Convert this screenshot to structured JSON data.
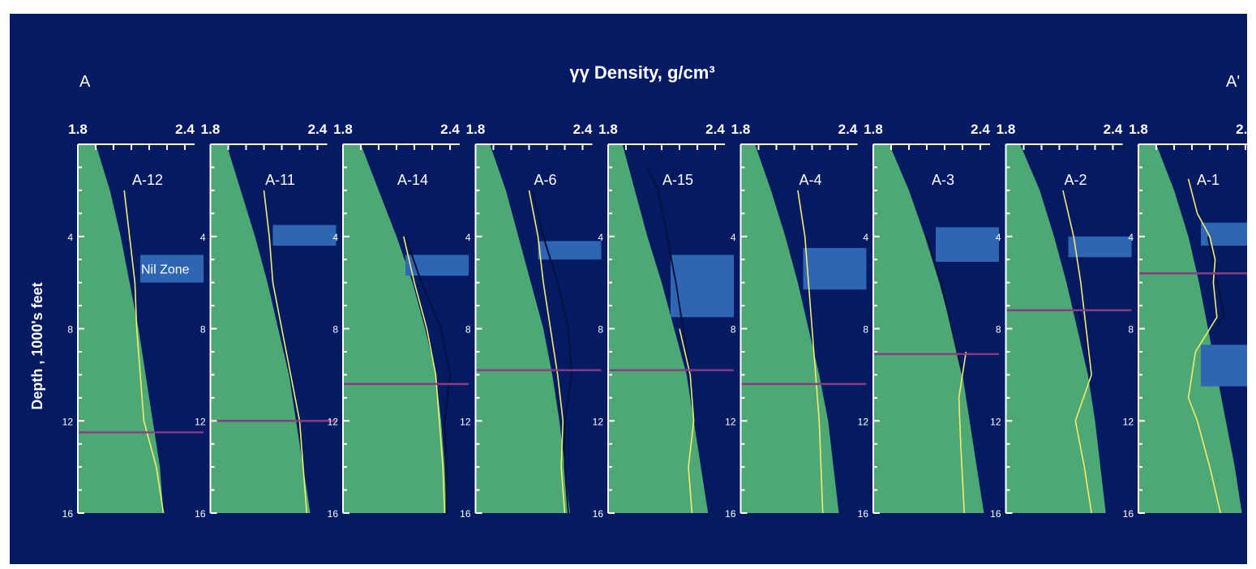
{
  "labels": {
    "left_section": "A",
    "right_section": "A'",
    "title": "γγ  Density, g/cm³",
    "ylabel": "Depth , 1000's feet",
    "nil_zone": "Nil Zone"
  },
  "colors": {
    "background": "#041b64",
    "fill": "#4ea873",
    "yellow_line": "#f2ec6e",
    "black_line": "#06113a",
    "purple_line": "#8a3b86",
    "blue_band": "#2e66b4"
  },
  "chart_data": {
    "type": "line",
    "title": "γγ  Density, g/cm³",
    "ylabel": "Depth , 1000's feet",
    "xlim": [
      1.8,
      2.4
    ],
    "ylim": [
      0,
      16
    ],
    "x_tick_labels": [
      "1.8",
      "2.4"
    ],
    "y_ticks": [
      4,
      8,
      12,
      16
    ],
    "wells": [
      {
        "name": "A-12",
        "fill": [
          [
            1.9,
            0
          ],
          [
            1.98,
            2
          ],
          [
            2.04,
            4
          ],
          [
            2.09,
            6
          ],
          [
            2.14,
            8
          ],
          [
            2.18,
            10
          ],
          [
            2.22,
            12
          ],
          [
            2.26,
            14
          ],
          [
            2.28,
            16
          ]
        ],
        "yellow": [
          [
            2.06,
            2
          ],
          [
            2.09,
            4
          ],
          [
            2.12,
            6
          ],
          [
            2.13,
            8
          ],
          [
            2.15,
            10
          ],
          [
            2.17,
            12
          ],
          [
            2.24,
            14
          ],
          [
            2.28,
            16
          ]
        ],
        "black": null,
        "nil_zone": [
          4.8,
          6.0
        ],
        "overpressure_depth": 12.5
      },
      {
        "name": "A-11",
        "fill": [
          [
            1.89,
            0
          ],
          [
            1.97,
            2
          ],
          [
            2.05,
            4
          ],
          [
            2.12,
            6
          ],
          [
            2.18,
            8
          ],
          [
            2.24,
            10
          ],
          [
            2.28,
            12
          ],
          [
            2.32,
            14
          ],
          [
            2.36,
            16
          ]
        ],
        "yellow": [
          [
            2.1,
            2
          ],
          [
            2.13,
            4
          ],
          [
            2.15,
            6
          ],
          [
            2.2,
            8
          ],
          [
            2.25,
            10
          ],
          [
            2.3,
            12
          ],
          [
            2.32,
            14
          ],
          [
            2.34,
            16
          ]
        ],
        "black": null,
        "nil_zone": [
          3.5,
          4.4
        ],
        "overpressure_depth": 12.0
      },
      {
        "name": "A-14",
        "fill": [
          [
            1.9,
            0
          ],
          [
            2.0,
            2
          ],
          [
            2.1,
            4
          ],
          [
            2.19,
            6
          ],
          [
            2.26,
            8
          ],
          [
            2.32,
            10
          ],
          [
            2.35,
            12
          ],
          [
            2.37,
            14
          ],
          [
            2.38,
            16
          ]
        ],
        "yellow": [
          [
            2.14,
            4
          ],
          [
            2.2,
            6
          ],
          [
            2.27,
            8
          ],
          [
            2.32,
            10
          ],
          [
            2.34,
            12
          ],
          [
            2.36,
            14
          ],
          [
            2.37,
            16
          ]
        ],
        "black": [
          [
            2.15,
            4
          ],
          [
            2.24,
            6
          ],
          [
            2.35,
            8
          ],
          [
            2.4,
            10
          ],
          [
            2.37,
            12
          ],
          [
            2.38,
            14
          ],
          [
            2.38,
            16
          ]
        ],
        "nil_zone": [
          4.8,
          5.7
        ],
        "overpressure_depth": 10.4
      },
      {
        "name": "A-6",
        "fill": [
          [
            1.88,
            0
          ],
          [
            1.97,
            2
          ],
          [
            2.04,
            4
          ],
          [
            2.11,
            6
          ],
          [
            2.18,
            8
          ],
          [
            2.23,
            10
          ],
          [
            2.27,
            12
          ],
          [
            2.3,
            14
          ],
          [
            2.33,
            16
          ]
        ],
        "yellow": [
          [
            2.1,
            2
          ],
          [
            2.15,
            4
          ],
          [
            2.18,
            6
          ],
          [
            2.22,
            8
          ],
          [
            2.26,
            10
          ],
          [
            2.29,
            12
          ],
          [
            2.28,
            14
          ],
          [
            2.3,
            16
          ]
        ],
        "black": [
          [
            2.12,
            2
          ],
          [
            2.18,
            4
          ],
          [
            2.26,
            6
          ],
          [
            2.32,
            8
          ],
          [
            2.34,
            10
          ],
          [
            2.3,
            12
          ],
          [
            2.3,
            14
          ],
          [
            2.32,
            16
          ]
        ],
        "nil_zone": [
          4.2,
          5.0
        ],
        "overpressure_depth": 9.8
      },
      {
        "name": "A-15",
        "fill": [
          [
            1.88,
            0
          ],
          [
            1.95,
            2
          ],
          [
            2.02,
            4
          ],
          [
            2.1,
            6
          ],
          [
            2.17,
            8
          ],
          [
            2.24,
            10
          ],
          [
            2.28,
            12
          ],
          [
            2.32,
            14
          ],
          [
            2.36,
            16
          ]
        ],
        "yellow": [
          [
            2.2,
            8
          ],
          [
            2.26,
            10
          ],
          [
            2.28,
            12
          ],
          [
            2.25,
            14
          ],
          [
            2.27,
            16
          ]
        ],
        "black": [
          [
            2.02,
            1
          ],
          [
            2.08,
            2
          ],
          [
            2.13,
            4
          ],
          [
            2.18,
            6
          ],
          [
            2.22,
            8
          ],
          [
            2.26,
            10
          ]
        ],
        "nil_zone": [
          4.8,
          7.5
        ],
        "overpressure_depth": 9.8
      },
      {
        "name": "A-4",
        "fill": [
          [
            1.88,
            0
          ],
          [
            1.97,
            2
          ],
          [
            2.05,
            4
          ],
          [
            2.12,
            6
          ],
          [
            2.18,
            8
          ],
          [
            2.24,
            10
          ],
          [
            2.29,
            12
          ],
          [
            2.32,
            14
          ],
          [
            2.35,
            16
          ]
        ],
        "yellow": [
          [
            2.12,
            2
          ],
          [
            2.16,
            4
          ],
          [
            2.18,
            6
          ],
          [
            2.2,
            8
          ],
          [
            2.22,
            10
          ],
          [
            2.24,
            12
          ],
          [
            2.25,
            14
          ],
          [
            2.26,
            16
          ]
        ],
        "black": null,
        "nil_zone": [
          4.5,
          6.3
        ],
        "overpressure_depth": 10.4
      },
      {
        "name": "A-3",
        "fill": [
          [
            1.89,
            0
          ],
          [
            2.0,
            2
          ],
          [
            2.09,
            4
          ],
          [
            2.17,
            6
          ],
          [
            2.24,
            8
          ],
          [
            2.3,
            10
          ],
          [
            2.34,
            12
          ],
          [
            2.38,
            14
          ],
          [
            2.42,
            16
          ]
        ],
        "yellow": [
          [
            2.32,
            9
          ],
          [
            2.28,
            11
          ],
          [
            2.29,
            13
          ],
          [
            2.31,
            16
          ]
        ],
        "black": [
          [
            2.1,
            4
          ],
          [
            2.18,
            6
          ],
          [
            2.24,
            8
          ],
          [
            2.3,
            10
          ]
        ],
        "nil_zone": [
          3.6,
          5.1
        ],
        "overpressure_depth": 9.1
      },
      {
        "name": "A-2",
        "fill": [
          [
            1.88,
            0
          ],
          [
            1.99,
            2
          ],
          [
            2.07,
            4
          ],
          [
            2.14,
            6
          ],
          [
            2.2,
            8
          ],
          [
            2.26,
            10
          ],
          [
            2.3,
            12
          ],
          [
            2.33,
            14
          ],
          [
            2.36,
            16
          ]
        ],
        "yellow": [
          [
            2.12,
            2
          ],
          [
            2.18,
            4
          ],
          [
            2.22,
            6
          ],
          [
            2.25,
            8
          ],
          [
            2.28,
            10
          ],
          [
            2.19,
            12
          ],
          [
            2.24,
            14
          ],
          [
            2.28,
            16
          ]
        ],
        "black": [
          [
            2.2,
            7
          ],
          [
            2.24,
            8
          ],
          [
            2.28,
            10
          ]
        ],
        "nil_zone": [
          4.0,
          4.9
        ],
        "overpressure_depth": 7.2
      },
      {
        "name": "A-1",
        "fill": [
          [
            1.9,
            0
          ],
          [
            2.0,
            2
          ],
          [
            2.08,
            4
          ],
          [
            2.14,
            6
          ],
          [
            2.19,
            8
          ],
          [
            2.24,
            10
          ],
          [
            2.29,
            12
          ],
          [
            2.34,
            14
          ],
          [
            2.38,
            16
          ]
        ],
        "yellow": [
          [
            2.08,
            1.5
          ],
          [
            2.13,
            3
          ],
          [
            2.2,
            4
          ],
          [
            2.23,
            5
          ],
          [
            2.22,
            6
          ],
          [
            2.24,
            7.5
          ],
          [
            2.2,
            8
          ],
          [
            2.12,
            9
          ],
          [
            2.08,
            11
          ],
          [
            2.13,
            12
          ],
          [
            2.2,
            14
          ],
          [
            2.26,
            16
          ]
        ],
        "black": [
          [
            2.19,
            4
          ],
          [
            2.24,
            6
          ],
          [
            2.28,
            7.4
          ],
          [
            2.24,
            7.9
          ]
        ],
        "nil_zone": [
          3.4,
          4.4
        ],
        "nil_zone_2": [
          8.7,
          10.5
        ],
        "overpressure_depth": 5.6
      }
    ]
  }
}
